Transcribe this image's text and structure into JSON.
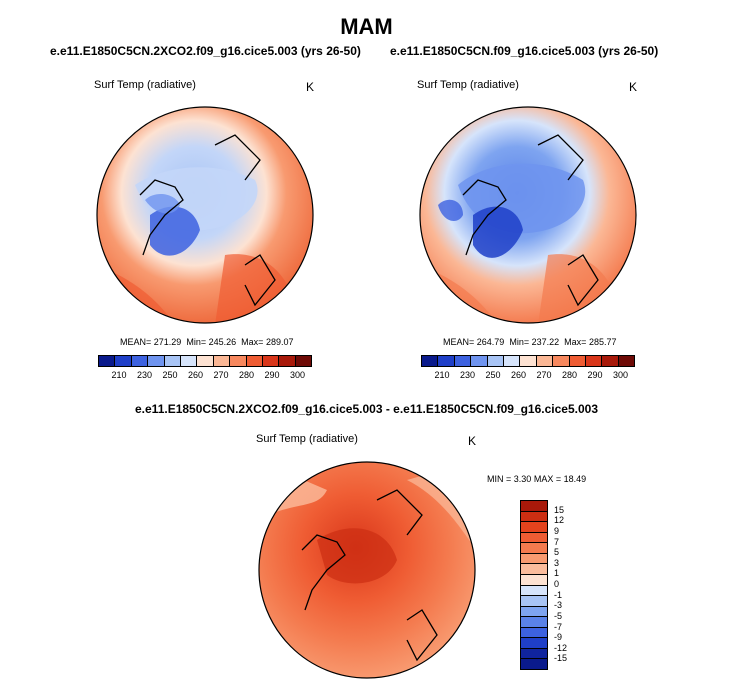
{
  "title": "MAM",
  "panels": {
    "left": {
      "case": "e.e11.E1850C5CN.2XCO2.f09_g16.cice5.003 (yrs 26-50)",
      "variable": "Surf Temp (radiative)",
      "unit": "K",
      "mean_label": "MEAN=",
      "mean": "271.29",
      "min_label": "Min=",
      "min": "245.26",
      "max_label": "Max=",
      "max": "289.07"
    },
    "right": {
      "case": "e.e11.E1850C5CN.f09_g16.cice5.003 (yrs 26-50)",
      "variable": "Surf Temp (radiative)",
      "unit": "K",
      "mean_label": "MEAN=",
      "mean": "264.79",
      "min_label": "Min=",
      "min": "237.22",
      "max_label": "Max=",
      "max": "285.77"
    },
    "diff": {
      "case": "e.e11.E1850C5CN.2XCO2.f09_g16.cice5.003 - e.e11.E1850C5CN.f09_g16.cice5.003",
      "variable": "Surf Temp (radiative)",
      "unit": "K",
      "min_label": "MIN =",
      "min": "3.30",
      "max_label": "MAX =",
      "max": "18.49"
    }
  },
  "colorbar_abs": {
    "labels": [
      "210",
      "230",
      "250",
      "260",
      "270",
      "280",
      "290",
      "300"
    ],
    "colors": [
      "#0a1a8c",
      "#1f3fc8",
      "#3d62e0",
      "#6f94ef",
      "#a8c4f5",
      "#d6e4fb",
      "#fde2d2",
      "#fbb795",
      "#f7885e",
      "#ef5c33",
      "#d9361a",
      "#a8190a",
      "#6e0a06"
    ]
  },
  "colorbar_diff": {
    "labels": [
      "15",
      "12",
      "9",
      "7",
      "5",
      "3",
      "1",
      "0",
      "-1",
      "-3",
      "-5",
      "-7",
      "-9",
      "-12",
      "-15"
    ],
    "colors": [
      "#a8190a",
      "#cc2e12",
      "#e4431d",
      "#ef5c33",
      "#f47a4e",
      "#f89a70",
      "#fbbc9c",
      "#fde2d2",
      "#d6e4fb",
      "#a8c4f5",
      "#7ea4f0",
      "#5a82e8",
      "#3d62e0",
      "#1f3fc8",
      "#10249e",
      "#0a1a8c"
    ]
  }
}
